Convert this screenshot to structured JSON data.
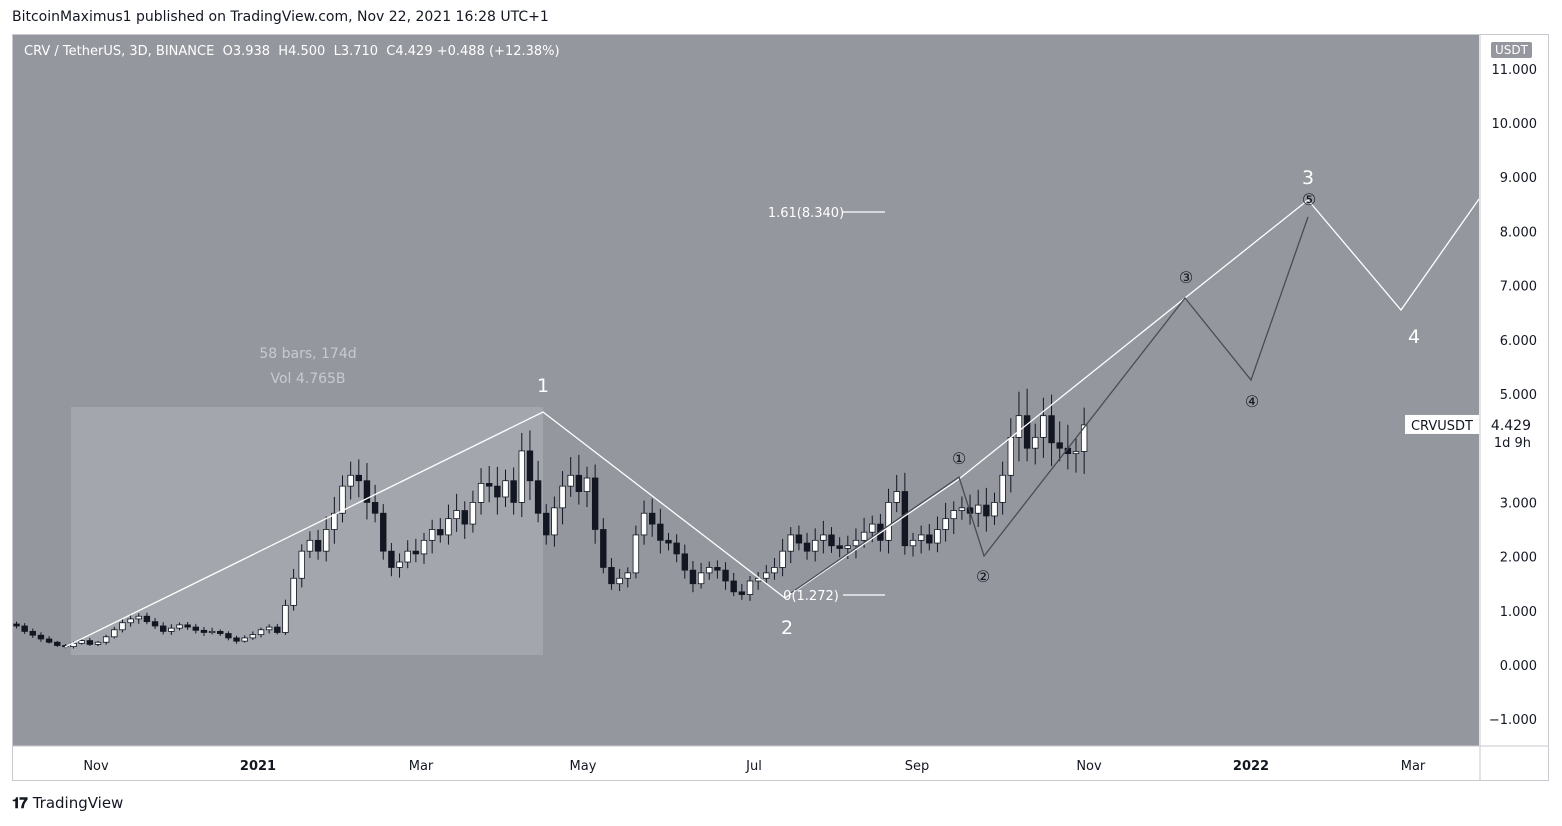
{
  "header": {
    "published_by": "BitcoinMaximus1 published on TradingView.com, Nov 22, 2021 16:28 UTC+1"
  },
  "legend": {
    "symbol": "CRV / TetherUS, 3D, BINANCE",
    "open_label": "O",
    "open": "3.938",
    "high_label": "H",
    "high": "4.500",
    "low_label": "L",
    "low": "3.710",
    "close_label": "C",
    "close": "4.429",
    "change": "+0.488 (+12.38%)"
  },
  "currency_label": "USDT",
  "price_tag": {
    "symbol": "CRVUSDT",
    "price": "4.429",
    "countdown": "1d 9h"
  },
  "measure": {
    "bars": "58 bars, 174d",
    "volume": "Vol 4.765B"
  },
  "fib": {
    "upper": "1.61(8.340)",
    "lower": "0(1.272)"
  },
  "footer": {
    "brand": "TradingView"
  },
  "colors": {
    "background": "#95979f",
    "up_candle": "#ffffff",
    "down_candle": "#131722",
    "wave_line": "#ffffff",
    "sub_wave_line": "#4a4c55",
    "measure_box": "#a4a6ad"
  },
  "chart_data": {
    "type": "candlestick",
    "title": "CRV / TetherUS, 3D, BINANCE",
    "y_ticks": [
      "11.000",
      "10.000",
      "9.000",
      "8.000",
      "7.000",
      "6.000",
      "5.000",
      "3.000",
      "2.000",
      "1.000",
      "0.000",
      "−1.000"
    ],
    "x_ticks": [
      "Nov",
      "2021",
      "Mar",
      "May",
      "Jul",
      "Sep",
      "Nov",
      "2022",
      "Mar"
    ],
    "ylim": [
      -1.0,
      11.0
    ],
    "close_values": [
      0.72,
      0.62,
      0.55,
      0.48,
      0.42,
      0.36,
      0.34,
      0.4,
      0.45,
      0.38,
      0.42,
      0.52,
      0.65,
      0.78,
      0.85,
      0.9,
      0.8,
      0.72,
      0.62,
      0.68,
      0.74,
      0.7,
      0.64,
      0.6,
      0.62,
      0.58,
      0.5,
      0.44,
      0.5,
      0.56,
      0.65,
      0.7,
      0.6,
      1.1,
      1.6,
      2.1,
      2.3,
      2.1,
      2.5,
      2.8,
      3.3,
      3.5,
      3.4,
      3.0,
      2.8,
      2.1,
      1.8,
      1.9,
      2.1,
      2.05,
      2.3,
      2.5,
      2.4,
      2.7,
      2.85,
      2.6,
      3.0,
      3.35,
      3.3,
      3.1,
      3.4,
      3.0,
      3.95,
      3.4,
      2.8,
      2.4,
      2.9,
      3.3,
      3.5,
      3.2,
      3.45,
      2.5,
      1.8,
      1.5,
      1.6,
      1.7,
      2.4,
      2.8,
      2.6,
      2.3,
      2.25,
      2.05,
      1.75,
      1.5,
      1.7,
      1.8,
      1.75,
      1.55,
      1.35,
      1.3,
      1.55,
      1.6,
      1.7,
      1.8,
      2.1,
      2.4,
      2.25,
      2.1,
      2.3,
      2.4,
      2.2,
      2.15,
      2.2,
      2.3,
      2.45,
      2.6,
      2.3,
      3.0,
      3.2,
      2.2,
      2.3,
      2.4,
      2.25,
      2.5,
      2.7,
      2.85,
      2.9,
      2.8,
      2.95,
      2.75,
      3.0,
      3.5,
      4.2,
      4.6,
      4.0,
      4.2,
      4.6,
      4.1,
      4.0,
      3.9,
      3.94,
      4.43
    ],
    "wave_labels": {
      "primary": [
        "1",
        "2",
        "3",
        "4"
      ],
      "sub_waves": [
        "①",
        "②",
        "③",
        "④",
        "⑤"
      ]
    }
  }
}
